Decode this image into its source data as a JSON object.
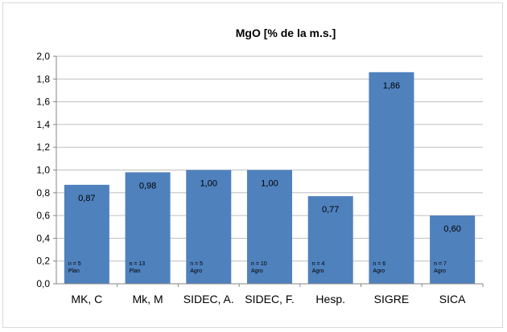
{
  "chart_data": {
    "type": "bar",
    "title": "MgO [% de la m.s.]",
    "categories": [
      "MK, C",
      "Mk, M",
      "SIDEC, A.",
      "SIDEC, F.",
      "Hesp.",
      "SIGRE",
      "SICA"
    ],
    "values": [
      0.87,
      0.98,
      1.0,
      1.0,
      0.77,
      1.86,
      0.6
    ],
    "value_labels": [
      "0,87",
      "0,98",
      "1,00",
      "1,00",
      "0,77",
      "1,86",
      "0,60"
    ],
    "bar_notes": [
      [
        "n = 5",
        "Plan"
      ],
      [
        "n = 13",
        "Plan"
      ],
      [
        "n = 5",
        "Agro"
      ],
      [
        "n = 10",
        "Agro"
      ],
      [
        "n = 4",
        "Agro"
      ],
      [
        "n = 6",
        "Agro"
      ],
      [
        "n = 7",
        "Agro"
      ]
    ],
    "ylim": [
      0,
      2.0
    ],
    "yticks": [
      0,
      0.2,
      0.4,
      0.6,
      0.8,
      1.0,
      1.2,
      1.4,
      1.6,
      1.8,
      2.0
    ],
    "ytick_labels": [
      "0,0",
      "0,2",
      "0,4",
      "0,6",
      "0,8",
      "1,0",
      "1,2",
      "1,4",
      "1,6",
      "1,8",
      "2,0"
    ],
    "xlabel": "",
    "ylabel": "",
    "grid": true,
    "legend": "none",
    "bar_color": "#4f81bd"
  }
}
